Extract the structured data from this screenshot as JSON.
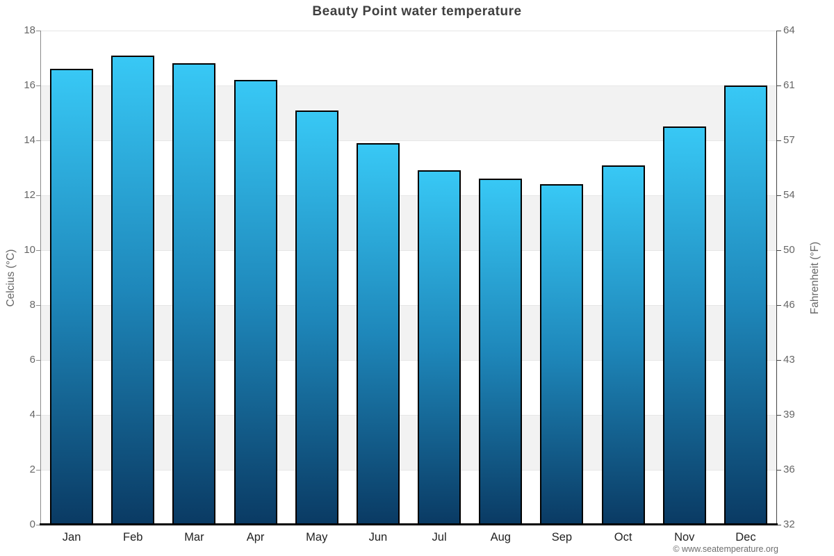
{
  "header": {
    "title": "Beauty Point water temperature"
  },
  "footer": {
    "copyright": "© www.seatemperature.org"
  },
  "chart_data": {
    "type": "bar",
    "title": "Beauty Point water temperature",
    "categories": [
      "Jan",
      "Feb",
      "Mar",
      "Apr",
      "May",
      "Jun",
      "Jul",
      "Aug",
      "Sep",
      "Oct",
      "Nov",
      "Dec"
    ],
    "values": [
      16.6,
      17.1,
      16.8,
      16.2,
      15.1,
      13.9,
      12.9,
      12.6,
      12.4,
      13.1,
      14.5,
      16.0
    ],
    "unit": "°C",
    "xlabel": "",
    "ylabel_left": "Celcius (°C)",
    "ylabel_right": "Fahrenheit (°F)",
    "ylim_left": [
      0,
      18
    ],
    "ylim_right": [
      32,
      64
    ],
    "yticks_left": [
      18,
      16,
      14,
      12,
      10,
      8,
      6,
      4,
      2,
      0
    ],
    "yticks_right": [
      64,
      61,
      57,
      54,
      50,
      46,
      43,
      39,
      36,
      32
    ],
    "legend": "none",
    "grid": "horizontal zebra bands every 2 units, light gridlines at major ticks",
    "colors": {
      "bar_gradient_top": "#38c8f5",
      "bar_gradient_mid": "#1e87ba",
      "bar_gradient_bottom": "#0a3a63",
      "bar_border": "#000000",
      "band_white": "#ffffff",
      "band_gray": "#f2f2f2",
      "gridline": "#e6e6e6",
      "left_axis_line": "#8a8a8a",
      "right_axis_line": "#444444",
      "bottom_axis_line": "#000000",
      "tick_label": "#666666",
      "title_color": "#3f3f3f",
      "month_label": "#222222",
      "watermark": "#6e6e6e"
    }
  }
}
